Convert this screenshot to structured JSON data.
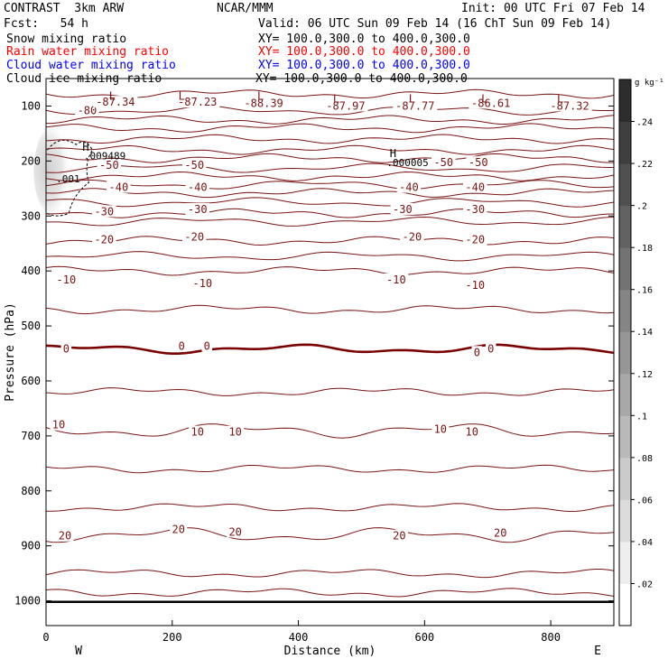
{
  "header": {
    "model": "CONTRAST  3km ARW",
    "center": "NCAR/MMM",
    "init": "Init: 00 UTC Fri 07 Feb 14",
    "fcst": "Fcst:   54 h",
    "valid": "Valid: 06 UTC Sun 09 Feb 14 (16 ChT Sun 09 Feb 14)"
  },
  "fields": [
    {
      "name": "Snow mixing ratio",
      "xy": "XY= 100.0,300.0 to 400.0,300.0",
      "color": "#000000"
    },
    {
      "name": "Rain water mixing ratio",
      "xy": "XY= 100.0,300.0 to 400.0,300.0",
      "color": "#ff0000"
    },
    {
      "name": "Cloud water mixing ratio",
      "xy": "XY= 100.0,300.0 to 400.0,300.0",
      "color": "#0000ff"
    },
    {
      "name": "Cloud ice mixing ratio",
      "xy": "XY= 100.0,300.0 to 400.0,300.0",
      "color": "#000000"
    }
  ],
  "chart_data": {
    "type": "contour",
    "xlabel": "Distance (km)",
    "ylabel": "Pressure (hPa)",
    "xlim": [
      0,
      900
    ],
    "ylim": [
      1045,
      50
    ],
    "x_ticks": [
      0,
      200,
      400,
      600,
      800
    ],
    "y_ticks": [
      100,
      200,
      300,
      400,
      500,
      600,
      700,
      800,
      900,
      1000
    ],
    "x_end_labels": {
      "left": "W",
      "right": "E"
    },
    "contour_color": "#7a1414",
    "zero_contour_color": "#7a0000",
    "isotherms": [
      {
        "level": -80,
        "p": 108
      },
      {
        "level": -50,
        "p": 213
      },
      {
        "level": -40,
        "p": 243
      },
      {
        "level": -30,
        "p": 275
      },
      {
        "level": -20,
        "p": 310
      },
      {
        "level": -10,
        "p": 373
      },
      {
        "level": 0,
        "p": 542
      },
      {
        "level": 10,
        "p": 690
      },
      {
        "level": 20,
        "p": 880
      }
    ],
    "contour_labels": [
      {
        "text": "-80",
        "x": 65,
        "p": 108
      },
      {
        "text": "-87.34",
        "x": 110,
        "p": 93
      },
      {
        "text": "-87.23",
        "x": 240,
        "p": 93
      },
      {
        "text": "-88.39",
        "x": 345,
        "p": 95
      },
      {
        "text": "-87.97",
        "x": 475,
        "p": 100
      },
      {
        "text": "-87.77",
        "x": 585,
        "p": 100
      },
      {
        "text": "-86.61",
        "x": 705,
        "p": 95
      },
      {
        "text": "-87.32",
        "x": 830,
        "p": 100
      },
      {
        "text": "-50",
        "x": 100,
        "p": 208
      },
      {
        "text": "-50",
        "x": 235,
        "p": 208
      },
      {
        "text": "-50",
        "x": 630,
        "p": 203
      },
      {
        "text": "-50",
        "x": 685,
        "p": 203
      },
      {
        "text": "-40",
        "x": 115,
        "p": 248
      },
      {
        "text": "-40",
        "x": 240,
        "p": 248
      },
      {
        "text": "-40",
        "x": 575,
        "p": 248
      },
      {
        "text": "-40",
        "x": 680,
        "p": 248
      },
      {
        "text": "-30",
        "x": 92,
        "p": 292
      },
      {
        "text": "-30",
        "x": 240,
        "p": 288
      },
      {
        "text": "-30",
        "x": 565,
        "p": 288
      },
      {
        "text": "-30",
        "x": 680,
        "p": 288
      },
      {
        "text": "-20",
        "x": 92,
        "p": 343
      },
      {
        "text": "-20",
        "x": 235,
        "p": 338
      },
      {
        "text": "-20",
        "x": 580,
        "p": 338
      },
      {
        "text": "-20",
        "x": 680,
        "p": 343
      },
      {
        "text": "-10",
        "x": 32,
        "p": 416
      },
      {
        "text": "-10",
        "x": 248,
        "p": 423
      },
      {
        "text": "-10",
        "x": 555,
        "p": 416
      },
      {
        "text": "-10",
        "x": 680,
        "p": 426
      },
      {
        "text": "0",
        "x": 32,
        "p": 542
      },
      {
        "text": "0",
        "x": 215,
        "p": 537
      },
      {
        "text": "0",
        "x": 255,
        "p": 537
      },
      {
        "text": "0",
        "x": 683,
        "p": 548
      },
      {
        "text": "0",
        "x": 705,
        "p": 542
      },
      {
        "text": "10",
        "x": 20,
        "p": 680
      },
      {
        "text": "10",
        "x": 240,
        "p": 693
      },
      {
        "text": "10",
        "x": 300,
        "p": 693
      },
      {
        "text": "10",
        "x": 625,
        "p": 688
      },
      {
        "text": "10",
        "x": 675,
        "p": 693
      },
      {
        "text": "20",
        "x": 30,
        "p": 882
      },
      {
        "text": "20",
        "x": 210,
        "p": 870
      },
      {
        "text": "20",
        "x": 300,
        "p": 875
      },
      {
        "text": "20",
        "x": 560,
        "p": 882
      },
      {
        "text": "20",
        "x": 720,
        "p": 877
      }
    ],
    "extrema": [
      {
        "type": "L",
        "x": 105,
        "p": 80
      },
      {
        "type": "L",
        "x": 215,
        "p": 80
      },
      {
        "type": "L",
        "x": 340,
        "p": 80
      },
      {
        "type": "L",
        "x": 460,
        "p": 85
      },
      {
        "type": "L",
        "x": 580,
        "p": 85
      },
      {
        "type": "L",
        "x": 695,
        "p": 85
      },
      {
        "type": "L",
        "x": 815,
        "p": 85
      },
      {
        "type": "H",
        "x": 63,
        "p": 173
      },
      {
        "type": "H",
        "x": 550,
        "p": 185
      }
    ],
    "max_labels": [
      {
        "text": ".009489",
        "x": 60,
        "p": 190
      },
      {
        "text": ".000005",
        "x": 540,
        "p": 203
      },
      {
        "text": ".001",
        "x": 16,
        "p": 232
      }
    ],
    "colorbar": {
      "unit": "g kg⁻¹",
      "ticks": [
        ".02",
        ".04",
        ".06",
        ".08",
        ".1",
        ".12",
        ".14",
        ".16",
        ".18",
        ".2",
        ".22",
        ".24"
      ],
      "min": 0,
      "max": 0.26
    }
  }
}
